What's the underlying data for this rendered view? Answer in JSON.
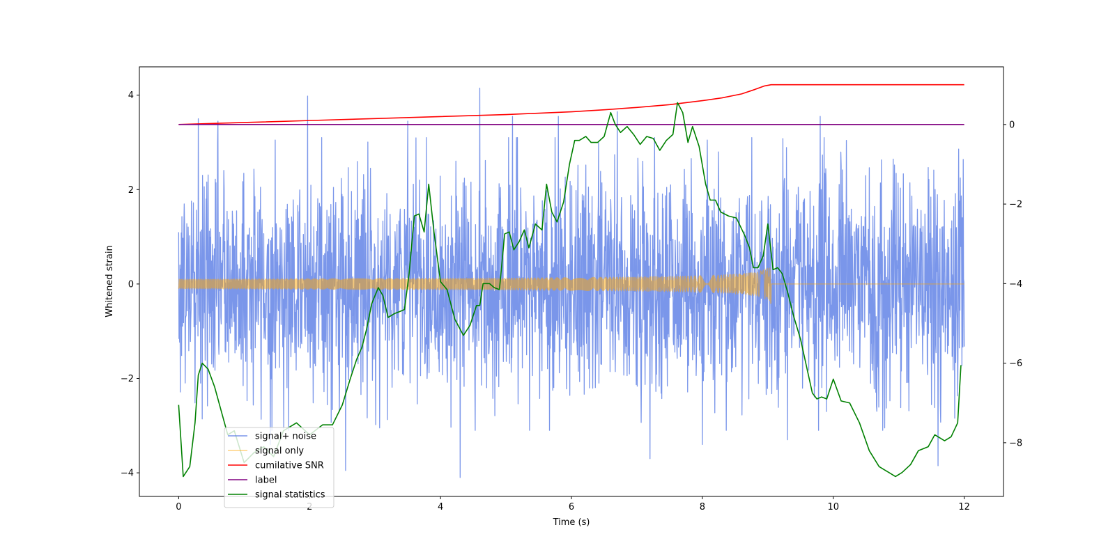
{
  "chart_data": {
    "type": "line",
    "title": "",
    "xlabel": "Time (s)",
    "ylabel_left": "Whitened strain",
    "ylabel_right": "",
    "xlim": [
      -0.6,
      12.6
    ],
    "ylim_left": [
      -4.5,
      4.6
    ],
    "ylim_right": [
      -9.35,
      1.45
    ],
    "x_ticks": [
      0,
      2,
      4,
      6,
      8,
      10,
      12
    ],
    "y_ticks_left": [
      -4,
      -2,
      0,
      2,
      4
    ],
    "y_ticks_right": [
      -8,
      -6,
      -4,
      -2,
      0
    ],
    "grid": false,
    "legend_placement": "lower-left",
    "series": [
      {
        "name": "signal+ noise",
        "axis": "left",
        "color": "#4169e1",
        "opacity": 0.7,
        "kind": "noise",
        "time_range": [
          0,
          12
        ],
        "typical_range": [
          -2.6,
          2.6
        ],
        "spikes": [
          [
            0.3,
            3.5
          ],
          [
            0.6,
            3.45
          ],
          [
            1.97,
            3.98
          ],
          [
            2.55,
            3.35
          ],
          [
            3.5,
            3.45
          ],
          [
            4.6,
            4.15
          ],
          [
            4.3,
            -4.1
          ],
          [
            5.1,
            3.55
          ],
          [
            5.8,
            3.55
          ],
          [
            6.7,
            3.65
          ],
          [
            9.8,
            3.55
          ],
          [
            2.55,
            -3.95
          ],
          [
            7.2,
            -3.7
          ],
          [
            11.6,
            -3.85
          ],
          [
            9.3,
            -3.3
          ],
          [
            1.4,
            -3.4
          ],
          [
            8.0,
            -3.4
          ]
        ]
      },
      {
        "name": "signal only",
        "axis": "left",
        "color": "#ffa500",
        "opacity": 0.5,
        "kind": "chirp",
        "time_range": [
          0,
          12
        ],
        "merger_time": 9.05,
        "peak_amplitude": 0.48
      },
      {
        "name": "cumilative SNR",
        "axis": "right",
        "color": "#ff0000",
        "x": [
          0,
          1,
          2,
          3,
          4,
          5,
          6,
          6.5,
          7,
          7.5,
          8,
          8.3,
          8.6,
          8.8,
          8.95,
          9.05,
          9.06,
          10,
          11,
          12
        ],
        "y": [
          0,
          0.05,
          0.1,
          0.15,
          0.2,
          0.25,
          0.32,
          0.37,
          0.43,
          0.5,
          0.6,
          0.67,
          0.77,
          0.88,
          0.97,
          1.0,
          1.0,
          1.0,
          1.0,
          1.0
        ]
      },
      {
        "name": "label",
        "axis": "right",
        "color": "#800080",
        "x": [
          0,
          12
        ],
        "y": [
          0,
          0
        ]
      },
      {
        "name": "signal statistics",
        "axis": "right",
        "color": "#008000",
        "x": [
          0,
          0.07,
          0.17,
          0.25,
          0.3,
          0.36,
          0.45,
          0.55,
          0.65,
          0.75,
          0.85,
          1.0,
          1.15,
          1.3,
          1.45,
          1.6,
          1.8,
          2.0,
          2.2,
          2.35,
          2.5,
          2.62,
          2.72,
          2.8,
          2.87,
          2.95,
          3.05,
          3.12,
          3.2,
          3.3,
          3.38,
          3.45,
          3.52,
          3.6,
          3.67,
          3.75,
          3.82,
          3.9,
          4.0,
          4.1,
          4.22,
          4.35,
          4.45,
          4.55,
          4.6,
          4.65,
          4.75,
          4.82,
          4.9,
          4.98,
          5.05,
          5.12,
          5.2,
          5.28,
          5.35,
          5.45,
          5.55,
          5.62,
          5.7,
          5.78,
          5.88,
          5.97,
          6.05,
          6.12,
          6.22,
          6.3,
          6.4,
          6.5,
          6.6,
          6.67,
          6.75,
          6.85,
          6.95,
          7.05,
          7.15,
          7.25,
          7.35,
          7.45,
          7.55,
          7.62,
          7.7,
          7.78,
          7.85,
          7.95,
          8.05,
          8.12,
          8.2,
          8.28,
          8.4,
          8.52,
          8.65,
          8.72,
          8.78,
          8.85,
          8.93,
          9.0,
          9.08,
          9.15,
          9.22,
          9.3,
          9.4,
          9.5,
          9.6,
          9.68,
          9.75,
          9.82,
          9.9,
          10.0,
          10.12,
          10.25,
          10.4,
          10.55,
          10.7,
          10.85,
          10.95,
          11.05,
          11.18,
          11.3,
          11.45,
          11.55,
          11.7,
          11.8,
          11.9,
          11.95
        ],
        "y": [
          -7.05,
          -8.85,
          -8.6,
          -7.5,
          -6.3,
          -6.0,
          -6.15,
          -6.6,
          -7.2,
          -7.8,
          -7.7,
          -8.5,
          -8.25,
          -8.1,
          -8.35,
          -7.7,
          -7.5,
          -7.8,
          -7.55,
          -7.55,
          -7.05,
          -6.4,
          -5.9,
          -5.6,
          -5.15,
          -4.5,
          -4.1,
          -4.3,
          -4.85,
          -4.75,
          -4.7,
          -4.65,
          -3.75,
          -2.3,
          -2.25,
          -2.7,
          -1.5,
          -2.7,
          -3.95,
          -4.15,
          -4.9,
          -5.3,
          -5.05,
          -4.55,
          -4.55,
          -4.0,
          -4.0,
          -4.1,
          -4.15,
          -2.75,
          -2.7,
          -3.15,
          -2.95,
          -2.65,
          -3.1,
          -2.5,
          -2.65,
          -1.5,
          -2.2,
          -2.45,
          -1.95,
          -1.0,
          -0.4,
          -0.4,
          -0.3,
          -0.45,
          -0.45,
          -0.3,
          0.3,
          0.0,
          -0.2,
          -0.05,
          -0.25,
          -0.5,
          -0.3,
          -0.35,
          -0.65,
          -0.4,
          -0.25,
          0.55,
          0.3,
          -0.45,
          -0.05,
          -0.55,
          -1.5,
          -1.9,
          -1.9,
          -2.2,
          -2.3,
          -2.35,
          -2.8,
          -3.1,
          -3.6,
          -3.6,
          -3.3,
          -2.5,
          -3.65,
          -3.6,
          -3.75,
          -4.2,
          -4.85,
          -5.4,
          -6.15,
          -6.75,
          -6.9,
          -6.85,
          -6.9,
          -6.4,
          -6.95,
          -7.0,
          -7.5,
          -8.2,
          -8.6,
          -8.75,
          -8.85,
          -8.75,
          -8.55,
          -8.2,
          -8.1,
          -7.8,
          -7.95,
          -7.85,
          -7.5,
          -6.05
        ]
      }
    ]
  }
}
